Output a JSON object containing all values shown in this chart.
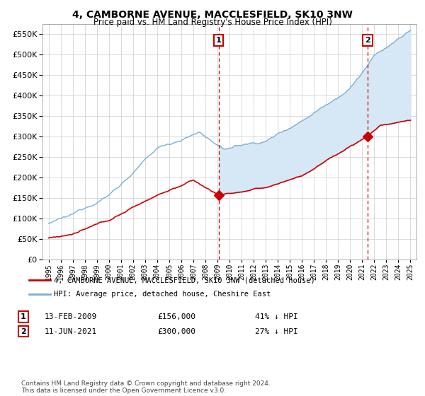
{
  "title": "4, CAMBORNE AVENUE, MACCLESFIELD, SK10 3NW",
  "subtitle": "Price paid vs. HM Land Registry's House Price Index (HPI)",
  "property_label": "4, CAMBORNE AVENUE, MACCLESFIELD, SK10 3NW (detached house)",
  "hpi_label": "HPI: Average price, detached house, Cheshire East",
  "footer": "Contains HM Land Registry data © Crown copyright and database right 2024.\nThis data is licensed under the Open Government Licence v3.0.",
  "sale1_date": "13-FEB-2009",
  "sale1_price": 156000,
  "sale1_pct": "41% ↓ HPI",
  "sale2_date": "11-JUN-2021",
  "sale2_price": 300000,
  "sale2_pct": "27% ↓ HPI",
  "sale1_x": 2009.11,
  "sale2_x": 2021.44,
  "property_color": "#cc0000",
  "hpi_color": "#7bafd4",
  "fill_color": "#d6e8f5",
  "annotation_color": "#cc0000",
  "grid_color": "#cccccc",
  "background_color": "#ffffff",
  "ylim": [
    0,
    575000
  ],
  "xlim_start": 1994.5,
  "xlim_end": 2025.5,
  "yticks": [
    0,
    50000,
    100000,
    150000,
    200000,
    250000,
    300000,
    350000,
    400000,
    450000,
    500000,
    550000
  ],
  "xticks": [
    1995,
    1996,
    1997,
    1998,
    1999,
    2000,
    2001,
    2002,
    2003,
    2004,
    2005,
    2006,
    2007,
    2008,
    2009,
    2010,
    2011,
    2012,
    2013,
    2014,
    2015,
    2016,
    2017,
    2018,
    2019,
    2020,
    2021,
    2022,
    2023,
    2024,
    2025
  ]
}
